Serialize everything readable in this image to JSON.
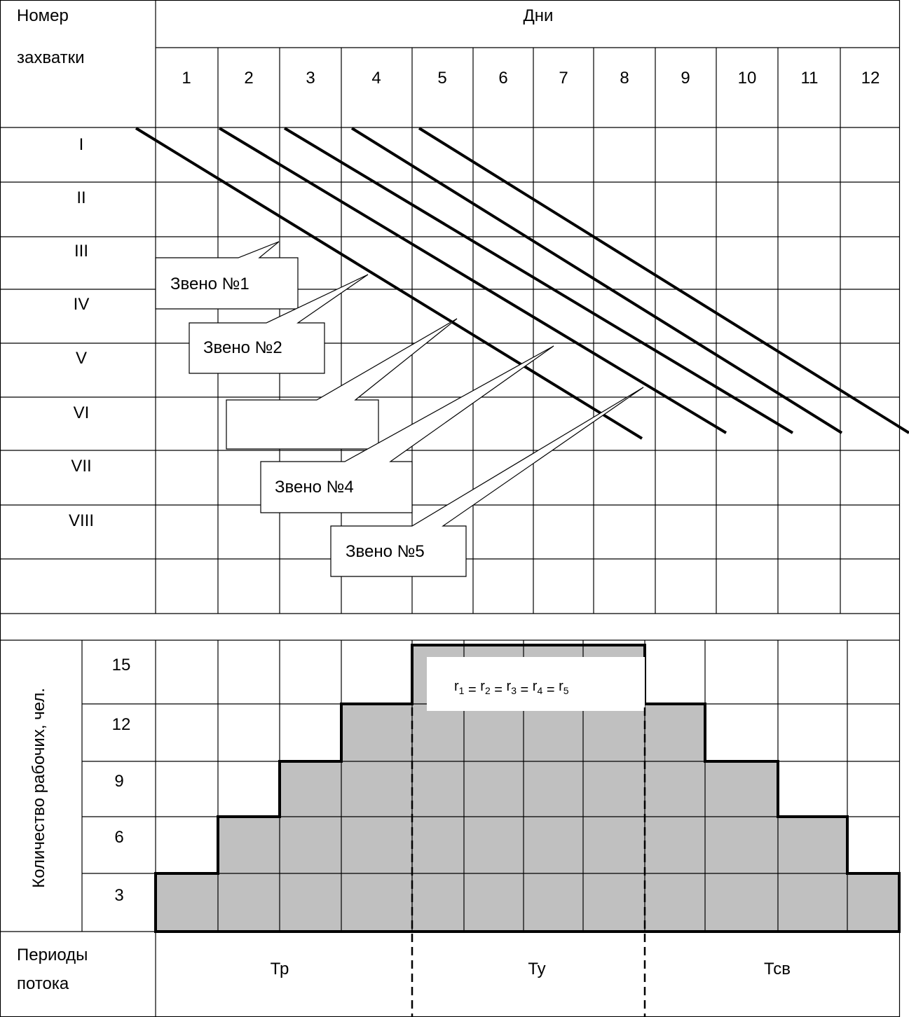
{
  "header": {
    "row_label_line1": "Номер",
    "row_label_line2": "захватки",
    "days_title": "Дни",
    "days": [
      "1",
      "2",
      "3",
      "4",
      "5",
      "6",
      "7",
      "8",
      "9",
      "10",
      "11",
      "12"
    ]
  },
  "zones": [
    "I",
    "II",
    "III",
    "IV",
    "V",
    "VI",
    "VII",
    "VIII",
    ""
  ],
  "callouts": [
    {
      "id": "zveno-1",
      "label": "Звено №1"
    },
    {
      "id": "zveno-2",
      "label": "Звено №2"
    },
    {
      "id": "zveno-3",
      "label": ""
    },
    {
      "id": "zveno-4",
      "label": "Звено №4"
    },
    {
      "id": "zveno-5",
      "label": "Звено №5"
    }
  ],
  "workers": {
    "axis_label": "Количество рабочих, чел.",
    "levels": [
      "15",
      "12",
      "9",
      "6",
      "3"
    ],
    "per_day": [
      3,
      6,
      9,
      12,
      15,
      15,
      15,
      15,
      12,
      9,
      6,
      3
    ],
    "formula": {
      "parts": [
        {
          "base": "r",
          "sub": "1"
        },
        {
          "base": "r",
          "sub": "2"
        },
        {
          "base": "r",
          "sub": "3"
        },
        {
          "base": "r",
          "sub": "4"
        },
        {
          "base": "r",
          "sub": "5"
        }
      ],
      "separator": " = "
    }
  },
  "periods": {
    "label_line1": "Периоды",
    "label_line2": "потока",
    "items": [
      "Тр",
      "Ту",
      "Тсв"
    ]
  },
  "colors": {
    "fill": "#c0c0c0",
    "line": "#000000"
  }
}
